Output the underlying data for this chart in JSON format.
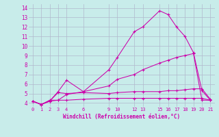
{
  "xlabel": "Windchill (Refroidissement éolien,°C)",
  "bg_color": "#c8ecea",
  "grid_color": "#b0b8cc",
  "line_color": "#cc00aa",
  "ylim": [
    3.6,
    14.4
  ],
  "xlim": [
    -0.5,
    21.5
  ],
  "xticks": [
    0,
    1,
    2,
    3,
    4,
    6,
    9,
    10,
    12,
    13,
    15,
    16,
    17,
    18,
    19,
    20,
    21
  ],
  "yticks": [
    4,
    5,
    6,
    7,
    8,
    9,
    10,
    11,
    12,
    13,
    14
  ],
  "series": [
    {
      "x": [
        0,
        1,
        2,
        3,
        4,
        6,
        9,
        10,
        12,
        13,
        15,
        16,
        17,
        18,
        19,
        20,
        21
      ],
      "y": [
        4.2,
        3.85,
        4.2,
        5.2,
        6.4,
        5.2,
        7.5,
        8.8,
        11.5,
        12.0,
        13.7,
        13.3,
        12.0,
        11.0,
        9.3,
        5.3,
        4.3
      ]
    },
    {
      "x": [
        0,
        1,
        2,
        3,
        4,
        6,
        9,
        10,
        12,
        13,
        15,
        16,
        17,
        18,
        19,
        20,
        21
      ],
      "y": [
        4.2,
        3.85,
        4.2,
        5.1,
        5.0,
        5.1,
        5.0,
        5.1,
        5.2,
        5.2,
        5.2,
        5.3,
        5.3,
        5.4,
        5.5,
        5.5,
        4.4
      ]
    },
    {
      "x": [
        0,
        1,
        2,
        3,
        4,
        6,
        9,
        10,
        12,
        13,
        15,
        16,
        17,
        18,
        19,
        20,
        21
      ],
      "y": [
        4.2,
        3.85,
        4.3,
        4.3,
        4.9,
        5.2,
        5.8,
        6.5,
        7.0,
        7.5,
        8.2,
        8.5,
        8.8,
        9.0,
        9.2,
        4.3,
        4.3
      ]
    },
    {
      "x": [
        0,
        1,
        2,
        3,
        4,
        6,
        9,
        10,
        12,
        13,
        15,
        16,
        17,
        18,
        19,
        20,
        21
      ],
      "y": [
        4.2,
        3.85,
        4.2,
        4.3,
        4.3,
        4.4,
        4.5,
        4.5,
        4.5,
        4.5,
        4.5,
        4.5,
        4.5,
        4.5,
        4.5,
        4.5,
        4.3
      ]
    }
  ]
}
